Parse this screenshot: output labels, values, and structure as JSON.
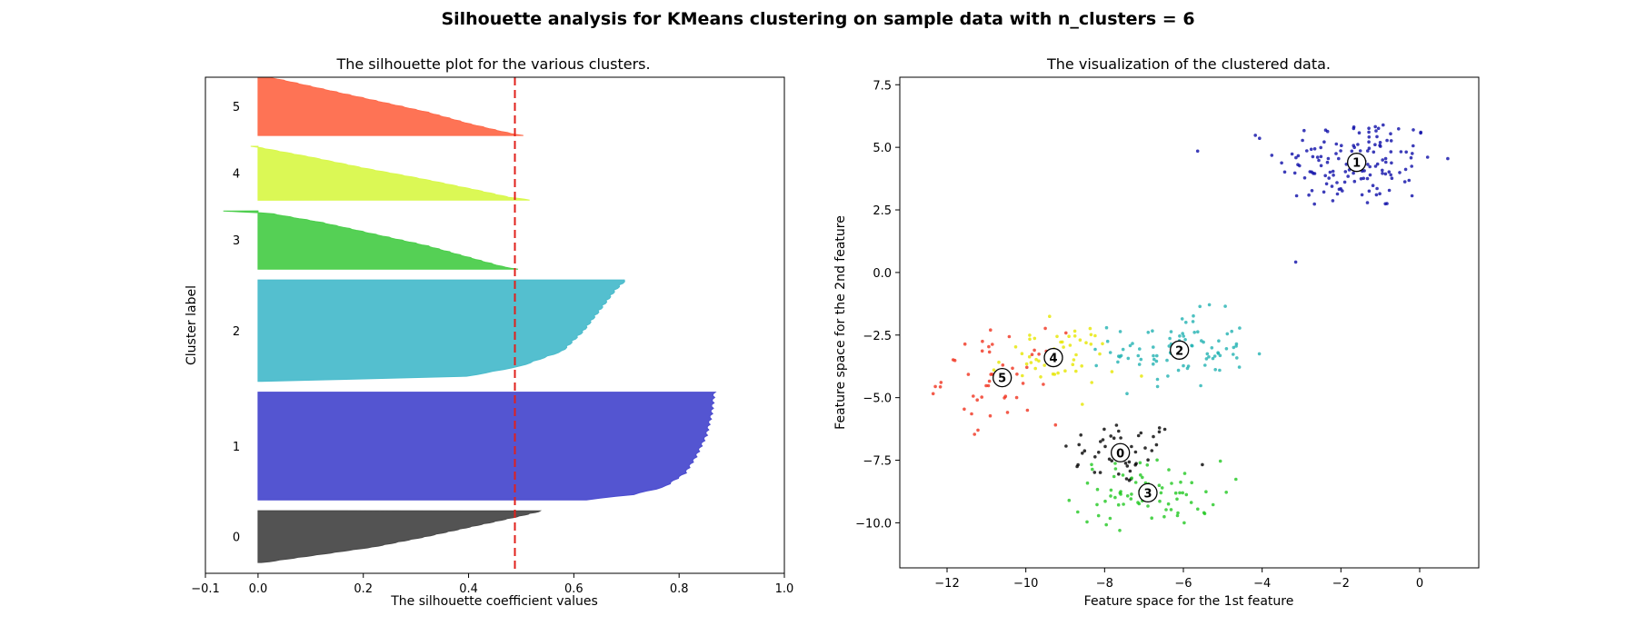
{
  "suptitle": "Silhouette analysis for KMeans clustering on sample data with n_clusters = 6",
  "chart_data": [
    {
      "type": "area",
      "title": "The silhouette plot for the various clusters.",
      "xlabel": "The silhouette coefficient values",
      "ylabel": "Cluster label",
      "xlim": [
        -0.1,
        1.0
      ],
      "ylim": [
        0,
        460
      ],
      "xticks": [
        "−0.1",
        "0.0",
        "0.2",
        "0.4",
        "0.6",
        "0.8",
        "1.0"
      ],
      "xtick_values": [
        -0.1,
        0.0,
        0.2,
        0.4,
        0.6,
        0.8,
        1.0
      ],
      "grid": false,
      "average_silhouette": 0.488,
      "clusters": [
        {
          "label": "0",
          "color": "#4a4a4a",
          "y_lower": 10,
          "y_upper": 58,
          "profile": [
            [
              0,
              0.54
            ],
            [
              0.1,
              0.5
            ],
            [
              0.3,
              0.41
            ],
            [
              0.5,
              0.32
            ],
            [
              0.7,
              0.22
            ],
            [
              0.9,
              0.08
            ],
            [
              1,
              0.01
            ]
          ]
        },
        {
          "label": "1",
          "color": "#4b4ccf",
          "y_lower": 68,
          "y_upper": 168,
          "profile": [
            [
              0,
              0.865
            ],
            [
              0.2,
              0.86
            ],
            [
              0.4,
              0.85
            ],
            [
              0.6,
              0.83
            ],
            [
              0.75,
              0.81
            ],
            [
              0.88,
              0.77
            ],
            [
              0.95,
              0.71
            ],
            [
              1,
              0.62
            ]
          ]
        },
        {
          "label": "2",
          "color": "#4bbccc",
          "y_lower": 178,
          "y_upper": 272,
          "profile": [
            [
              0,
              0.7
            ],
            [
              0.1,
              0.68
            ],
            [
              0.3,
              0.65
            ],
            [
              0.5,
              0.62
            ],
            [
              0.7,
              0.58
            ],
            [
              0.85,
              0.5
            ],
            [
              0.95,
              0.4
            ],
            [
              1,
              0.01
            ]
          ]
        },
        {
          "label": "3",
          "color": "#4cce4c",
          "y_lower": 282,
          "y_upper": 336,
          "profile": [
            [
              0,
              -0.07
            ],
            [
              0.04,
              0.02
            ],
            [
              0.2,
              0.12
            ],
            [
              0.4,
              0.22
            ],
            [
              0.6,
              0.32
            ],
            [
              0.8,
              0.4
            ],
            [
              0.95,
              0.46
            ],
            [
              1,
              0.49
            ]
          ]
        },
        {
          "label": "4",
          "color": "#d9f84c",
          "y_lower": 346,
          "y_upper": 396,
          "profile": [
            [
              0,
              -0.01
            ],
            [
              0.2,
              0.1
            ],
            [
              0.4,
              0.2
            ],
            [
              0.6,
              0.31
            ],
            [
              0.8,
              0.41
            ],
            [
              0.95,
              0.48
            ],
            [
              1,
              0.52
            ]
          ]
        },
        {
          "label": "5",
          "color": "#fe6b4c",
          "y_lower": 406,
          "y_upper": 460,
          "profile": [
            [
              0,
              0.02
            ],
            [
              0.2,
              0.12
            ],
            [
              0.4,
              0.22
            ],
            [
              0.6,
              0.32
            ],
            [
              0.8,
              0.4
            ],
            [
              0.95,
              0.47
            ],
            [
              1,
              0.5
            ]
          ]
        }
      ]
    },
    {
      "type": "scatter",
      "title": "The visualization of the clustered data.",
      "xlabel": "Feature space for the 1st feature",
      "ylabel": "Feature space for the 2nd feature",
      "xlim": [
        -13.2,
        1.5
      ],
      "ylim": [
        -11.8,
        7.8
      ],
      "xticks": [
        "−12",
        "−10",
        "−8",
        "−6",
        "−4",
        "−2",
        "0"
      ],
      "xtick_values": [
        -12,
        -10,
        -8,
        -6,
        -4,
        -2,
        0
      ],
      "yticks": [
        "−10.0",
        "−7.5",
        "−5.0",
        "−2.5",
        "0.0",
        "2.5",
        "5.0",
        "7.5"
      ],
      "ytick_values": [
        -10.0,
        -7.5,
        -5.0,
        -2.5,
        0.0,
        2.5,
        5.0,
        7.5
      ],
      "grid": false,
      "clusters": [
        {
          "label": "0",
          "color": "#000000",
          "center": [
            -7.6,
            -7.2
          ],
          "spread": [
            0.75,
            0.65
          ],
          "n": 50
        },
        {
          "label": "1",
          "color": "#0c0ca8",
          "center": [
            -1.6,
            4.4
          ],
          "spread": [
            1.0,
            0.95
          ],
          "n": 150
        },
        {
          "label": "2",
          "color": "#20b2b2",
          "center": [
            -6.1,
            -3.1
          ],
          "spread": [
            0.85,
            0.75
          ],
          "n": 90
        },
        {
          "label": "3",
          "color": "#22c822",
          "center": [
            -6.9,
            -8.8
          ],
          "spread": [
            0.95,
            0.65
          ],
          "n": 75
        },
        {
          "label": "4",
          "color": "#e6e600",
          "center": [
            -9.3,
            -3.4
          ],
          "spread": [
            0.8,
            0.65
          ],
          "n": 50
        },
        {
          "label": "5",
          "color": "#f0321e",
          "center": [
            -10.6,
            -4.2
          ],
          "spread": [
            0.75,
            0.9
          ],
          "n": 50
        }
      ]
    }
  ]
}
